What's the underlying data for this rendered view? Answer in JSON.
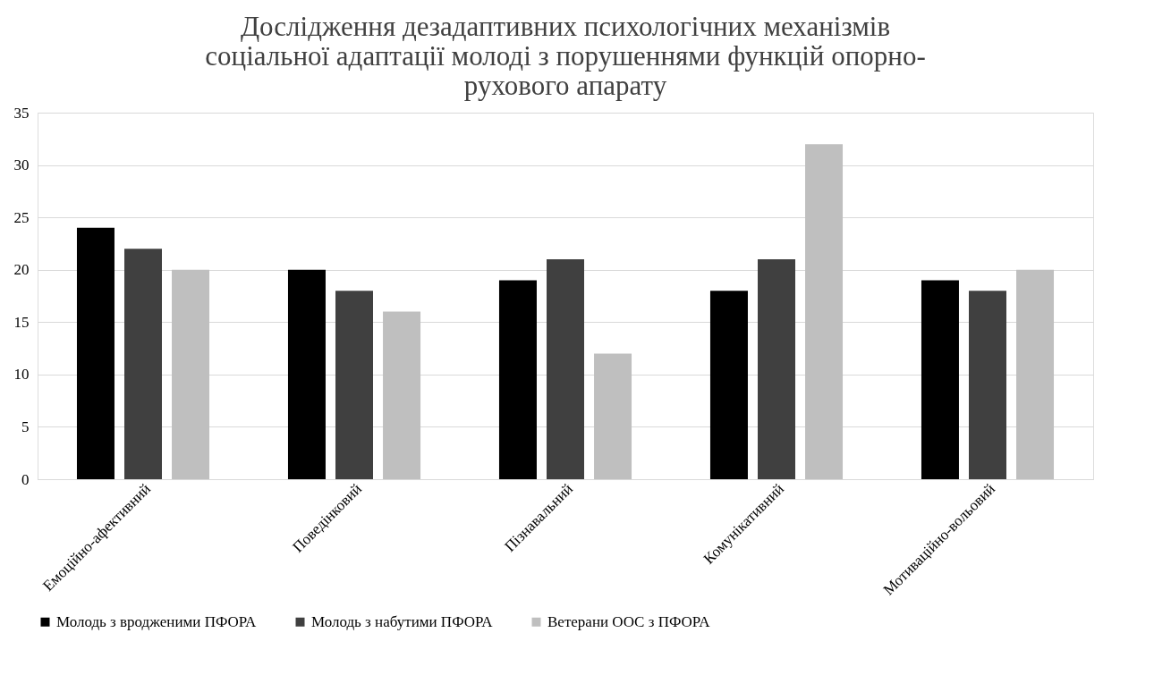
{
  "chart_data": {
    "type": "bar",
    "title": [
      "Дослідження дезадаптивних психологічних механізмів",
      "соціальної адаптації молоді з порушеннями функцій опорно-",
      "рухового апарату"
    ],
    "categories": [
      "Емоційно-афективний",
      "Поведінковий",
      "Пізнавальний",
      "Комунікативний",
      "Мотиваційно-вольовий"
    ],
    "series": [
      {
        "name": "Молодь з вродженими ПФОРА",
        "color": "#000000",
        "values": [
          24,
          20,
          19,
          18,
          19
        ]
      },
      {
        "name": "Молодь з набутими ПФОРА",
        "color": "#404040",
        "values": [
          22,
          18,
          21,
          21,
          18
        ]
      },
      {
        "name": "Ветерани ООС з ПФОРА",
        "color": "#bfbfbf",
        "values": [
          20,
          16,
          12,
          32,
          20
        ]
      }
    ],
    "ylim": [
      0,
      35
    ],
    "yticks": [
      0,
      5,
      10,
      15,
      20,
      25,
      30,
      35
    ],
    "grid": "y",
    "legend": "bottom"
  }
}
